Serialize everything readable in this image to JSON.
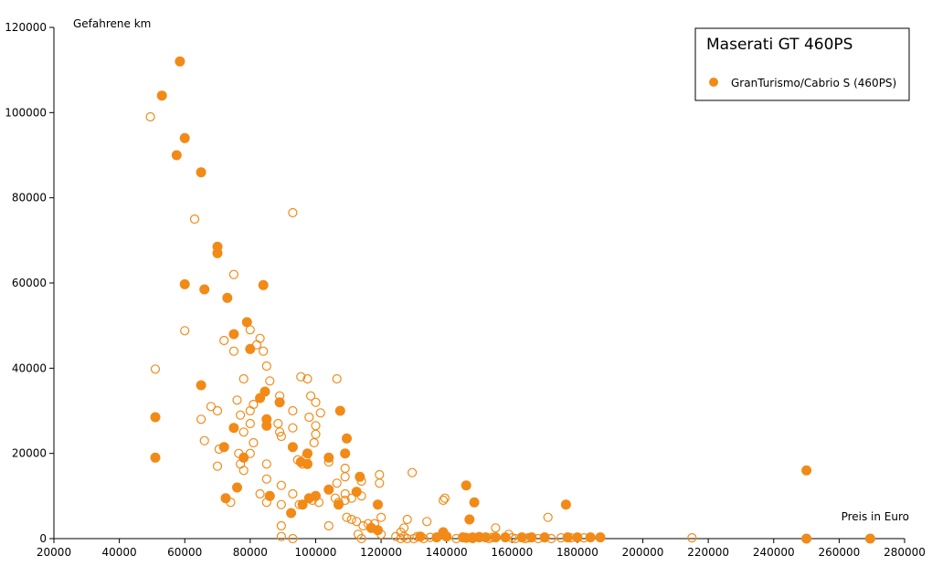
{
  "chart_data": {
    "type": "scatter",
    "title": "Maserati GT 460PS",
    "xlabel": "Preis in Euro",
    "ylabel": "Gefahrene km",
    "xlim": [
      20000,
      280000
    ],
    "ylim": [
      0,
      120000
    ],
    "x_ticks": [
      20000,
      40000,
      60000,
      80000,
      100000,
      120000,
      140000,
      160000,
      180000,
      200000,
      220000,
      240000,
      260000,
      280000
    ],
    "y_ticks": [
      0,
      20000,
      40000,
      60000,
      80000,
      100000,
      120000
    ],
    "grid": false,
    "legend_position": "top-right",
    "colors": {
      "series": "#f28a17",
      "axis": "#000000"
    },
    "series": [
      {
        "name": "GranTurismo/Cabrio S (460PS)",
        "marker": "filled-circle",
        "points": [
          [
            58500,
            112000
          ],
          [
            53000,
            104000
          ],
          [
            60000,
            94000
          ],
          [
            57500,
            90000
          ],
          [
            65000,
            86000
          ],
          [
            70000,
            68500
          ],
          [
            70000,
            67000
          ],
          [
            60000,
            59700
          ],
          [
            66000,
            58500
          ],
          [
            84000,
            59500
          ],
          [
            73000,
            56500
          ],
          [
            79000,
            50800
          ],
          [
            75000,
            48000
          ],
          [
            80000,
            44500
          ],
          [
            65000,
            36000
          ],
          [
            84500,
            34500
          ],
          [
            83000,
            33000
          ],
          [
            89000,
            32000
          ],
          [
            107500,
            30000
          ],
          [
            85000,
            28000
          ],
          [
            85000,
            26500
          ],
          [
            75000,
            26000
          ],
          [
            109500,
            23500
          ],
          [
            72000,
            21500
          ],
          [
            93000,
            21500
          ],
          [
            51000,
            28500
          ],
          [
            51000,
            19000
          ],
          [
            78000,
            19000
          ],
          [
            97500,
            20000
          ],
          [
            104000,
            19000
          ],
          [
            109000,
            20000
          ],
          [
            95500,
            18000
          ],
          [
            97500,
            17500
          ],
          [
            113500,
            14500
          ],
          [
            104000,
            11500
          ],
          [
            112500,
            11000
          ],
          [
            100000,
            10000
          ],
          [
            98000,
            9500
          ],
          [
            76000,
            12000
          ],
          [
            86000,
            10000
          ],
          [
            72500,
            9500
          ],
          [
            107000,
            8000
          ],
          [
            119000,
            8000
          ],
          [
            96000,
            8000
          ],
          [
            92500,
            6000
          ],
          [
            146000,
            12500
          ],
          [
            148500,
            8500
          ],
          [
            176500,
            8000
          ],
          [
            147000,
            4500
          ],
          [
            117000,
            2500
          ],
          [
            119000,
            2000
          ],
          [
            139000,
            1500
          ],
          [
            132000,
            500
          ],
          [
            137000,
            300
          ],
          [
            140000,
            500
          ],
          [
            145000,
            300
          ],
          [
            146000,
            200
          ],
          [
            148000,
            300
          ],
          [
            150000,
            300
          ],
          [
            152000,
            300
          ],
          [
            155000,
            300
          ],
          [
            158000,
            300
          ],
          [
            163000,
            300
          ],
          [
            166000,
            300
          ],
          [
            170000,
            300
          ],
          [
            177000,
            300
          ],
          [
            180000,
            300
          ],
          [
            184000,
            300
          ],
          [
            187000,
            300
          ],
          [
            250000,
            16000
          ],
          [
            250000,
            0
          ],
          [
            269500,
            0
          ]
        ]
      },
      {
        "name": "",
        "marker": "open-circle",
        "points": [
          [
            49500,
            99000
          ],
          [
            63000,
            75000
          ],
          [
            93000,
            76500
          ],
          [
            75000,
            62000
          ],
          [
            60000,
            48800
          ],
          [
            72000,
            46500
          ],
          [
            80000,
            49000
          ],
          [
            83000,
            47000
          ],
          [
            82000,
            45500
          ],
          [
            75000,
            44000
          ],
          [
            84000,
            44000
          ],
          [
            85000,
            40500
          ],
          [
            51000,
            39800
          ],
          [
            78000,
            37500
          ],
          [
            86000,
            37000
          ],
          [
            95500,
            38000
          ],
          [
            97500,
            37500
          ],
          [
            106500,
            37500
          ],
          [
            98500,
            33500
          ],
          [
            100000,
            32000
          ],
          [
            76000,
            32500
          ],
          [
            81000,
            31500
          ],
          [
            68000,
            31000
          ],
          [
            70000,
            30000
          ],
          [
            80000,
            30000
          ],
          [
            89000,
            33500
          ],
          [
            93000,
            30000
          ],
          [
            101500,
            29500
          ],
          [
            98000,
            28500
          ],
          [
            88500,
            27000
          ],
          [
            93000,
            26000
          ],
          [
            100000,
            26500
          ],
          [
            77000,
            29000
          ],
          [
            80000,
            27000
          ],
          [
            65000,
            28000
          ],
          [
            89000,
            25000
          ],
          [
            100000,
            24500
          ],
          [
            89500,
            24000
          ],
          [
            78000,
            25000
          ],
          [
            66000,
            23000
          ],
          [
            81000,
            22500
          ],
          [
            99500,
            22500
          ],
          [
            70500,
            21000
          ],
          [
            80000,
            20000
          ],
          [
            76500,
            20000
          ],
          [
            97000,
            19000
          ],
          [
            104000,
            18000
          ],
          [
            94500,
            18500
          ],
          [
            77000,
            17500
          ],
          [
            70000,
            17000
          ],
          [
            85000,
            17500
          ],
          [
            96000,
            17500
          ],
          [
            109000,
            16500
          ],
          [
            78000,
            16000
          ],
          [
            129500,
            15500
          ],
          [
            119500,
            15000
          ],
          [
            109000,
            14500
          ],
          [
            119500,
            13000
          ],
          [
            114000,
            13500
          ],
          [
            85000,
            14000
          ],
          [
            106500,
            13000
          ],
          [
            89500,
            12500
          ],
          [
            83000,
            10500
          ],
          [
            93000,
            10500
          ],
          [
            109000,
            10500
          ],
          [
            114000,
            10000
          ],
          [
            106000,
            9500
          ],
          [
            99000,
            9000
          ],
          [
            101000,
            8500
          ],
          [
            95000,
            8000
          ],
          [
            107000,
            8500
          ],
          [
            89500,
            8000
          ],
          [
            74000,
            8500
          ],
          [
            85000,
            8500
          ],
          [
            109000,
            9000
          ],
          [
            111000,
            9500
          ],
          [
            109500,
            5000
          ],
          [
            111000,
            4500
          ],
          [
            112500,
            4000
          ],
          [
            116000,
            3500
          ],
          [
            118000,
            3500
          ],
          [
            120000,
            5000
          ],
          [
            114500,
            3000
          ],
          [
            120000,
            1000
          ],
          [
            89500,
            3000
          ],
          [
            89500,
            500
          ],
          [
            93000,
            0
          ],
          [
            104000,
            3000
          ],
          [
            113000,
            1000
          ],
          [
            114000,
            0
          ],
          [
            124500,
            500
          ],
          [
            126000,
            1500
          ],
          [
            127000,
            2500
          ],
          [
            128000,
            4500
          ],
          [
            127000,
            500
          ],
          [
            128000,
            0
          ],
          [
            130000,
            0
          ],
          [
            131000,
            500
          ],
          [
            134000,
            4000
          ],
          [
            139000,
            9000
          ],
          [
            139500,
            9500
          ],
          [
            155000,
            2500
          ],
          [
            171000,
            5000
          ],
          [
            159000,
            1000
          ],
          [
            150000,
            500
          ],
          [
            154000,
            300
          ],
          [
            160000,
            200
          ],
          [
            165000,
            200
          ],
          [
            170000,
            200
          ],
          [
            175000,
            200
          ],
          [
            178000,
            200
          ],
          [
            182000,
            200
          ],
          [
            215000,
            200
          ],
          [
            126000,
            0
          ],
          [
            133000,
            0
          ],
          [
            135000,
            300
          ],
          [
            143000,
            0
          ],
          [
            148000,
            0
          ],
          [
            153000,
            0
          ],
          [
            161000,
            0
          ],
          [
            164000,
            0
          ],
          [
            168000,
            0
          ],
          [
            172000,
            0
          ]
        ]
      }
    ]
  }
}
